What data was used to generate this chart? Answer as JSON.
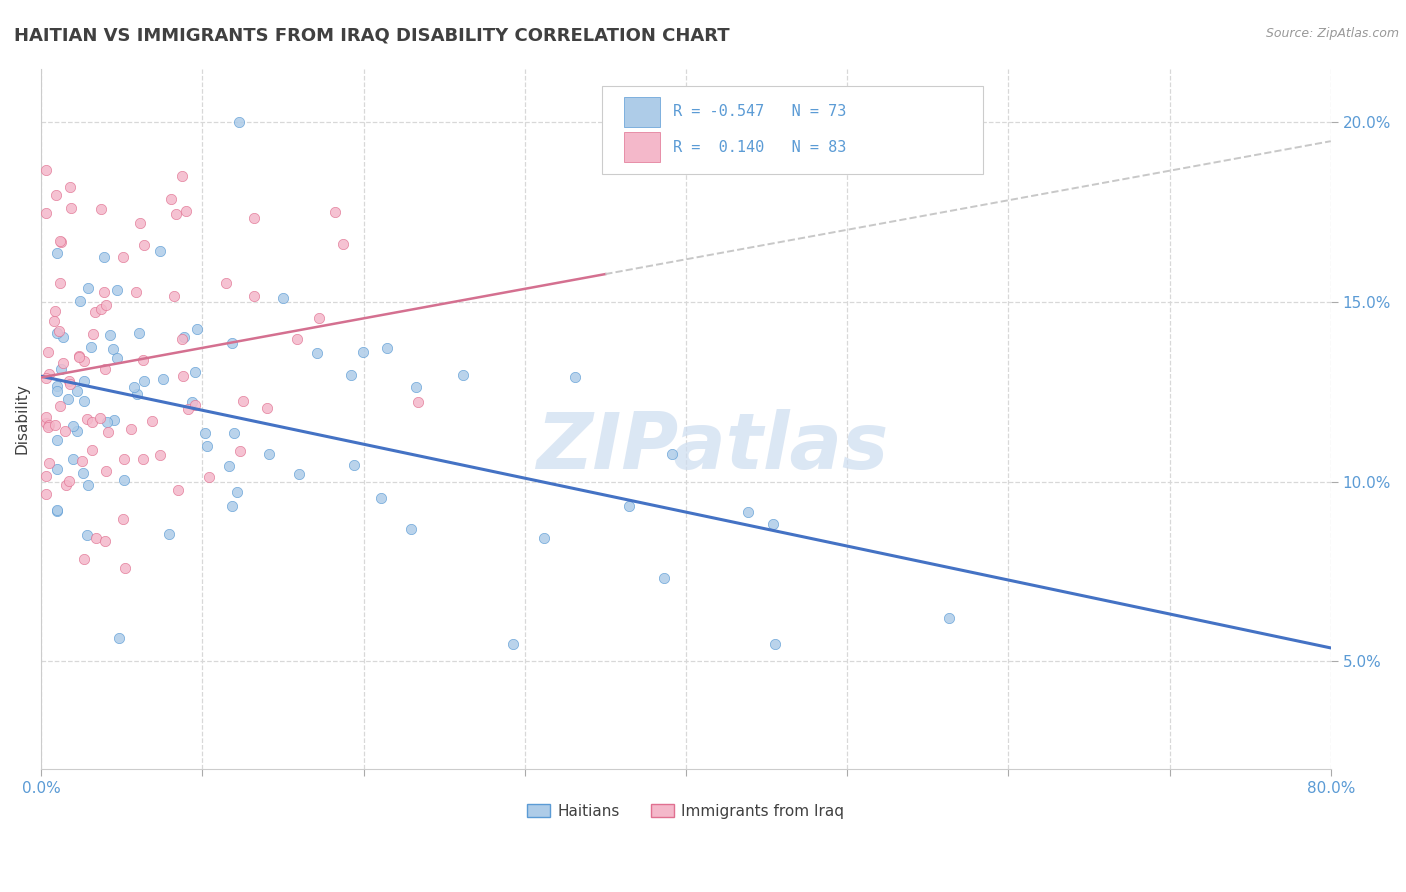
{
  "title": "HAITIAN VS IMMIGRANTS FROM IRAQ DISABILITY CORRELATION CHART",
  "source": "Source: ZipAtlas.com",
  "ylabel": "Disability",
  "xmin": 0.0,
  "xmax": 0.8,
  "ymin": 0.02,
  "ymax": 0.215,
  "color_haitian_fill": "#aecce8",
  "color_haitian_edge": "#5b9bd5",
  "color_iraq_fill": "#f4b8ca",
  "color_iraq_edge": "#e07090",
  "color_trend_haitian": "#4472c4",
  "color_trend_iraq_solid": "#d47090",
  "color_trend_iraq_dashed": "#c8c8c8",
  "background_color": "#ffffff",
  "grid_color": "#d8d8d8",
  "title_color": "#404040",
  "axis_color": "#5b9bd5",
  "legend_text_color": "#5b9bd5",
  "watermark_color": "#cdddf0",
  "ytick_labels": [
    "5.0%",
    "10.0%",
    "15.0%",
    "20.0%"
  ],
  "ytick_vals": [
    0.05,
    0.1,
    0.15,
    0.2
  ],
  "xtick_vals": [
    0.0,
    0.1,
    0.2,
    0.3,
    0.4,
    0.5,
    0.6,
    0.7,
    0.8
  ],
  "seed_haitian": 42,
  "seed_iraq": 99
}
